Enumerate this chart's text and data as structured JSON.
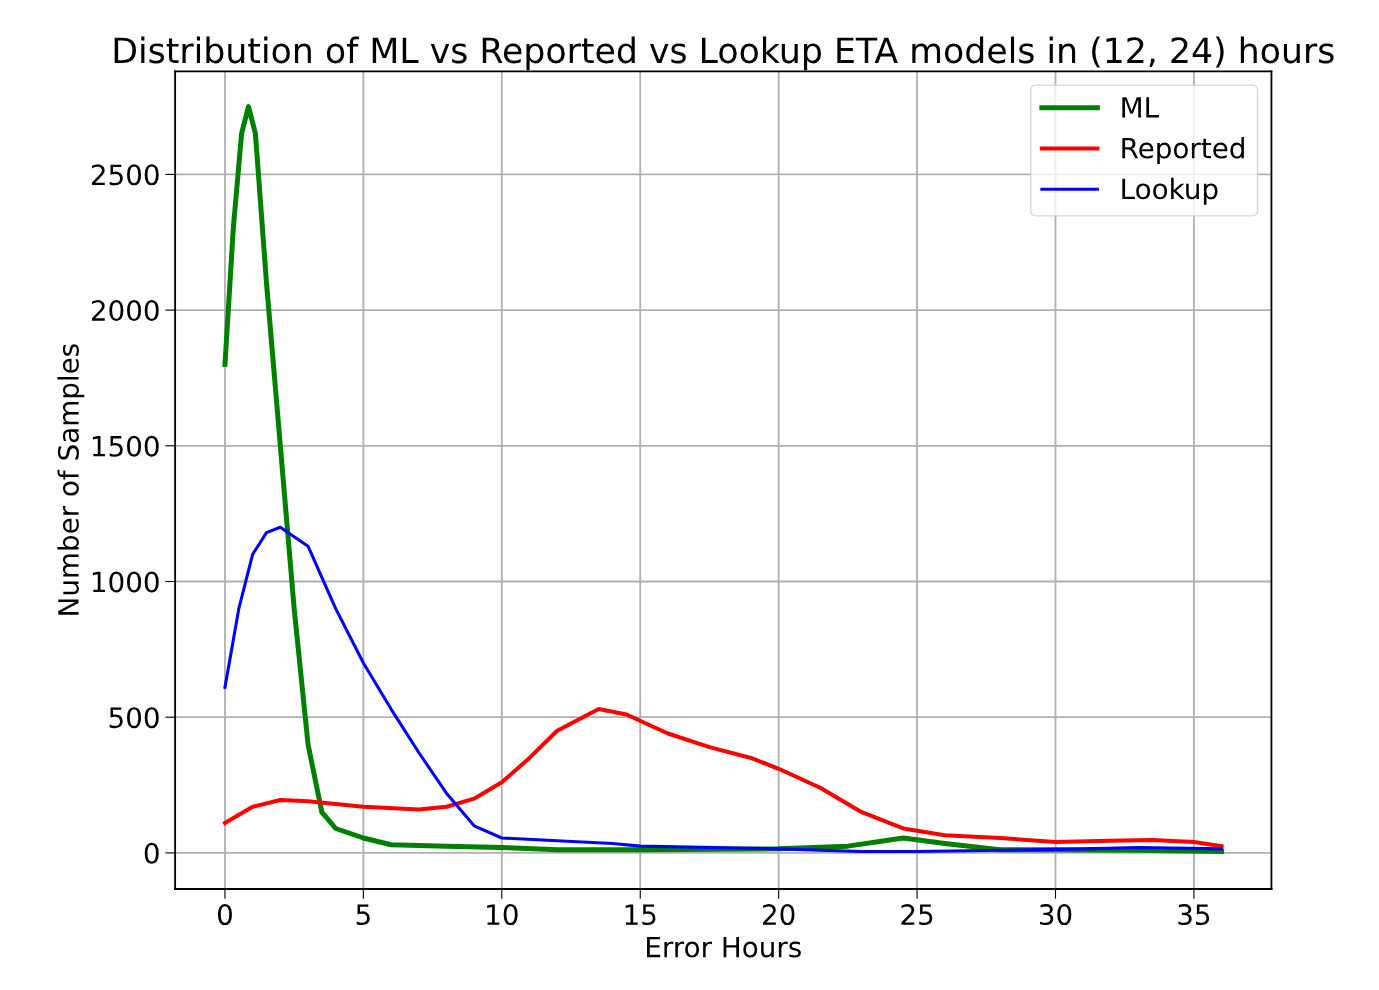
{
  "chart_data": {
    "type": "line",
    "title": "Distribution of ML vs Reported vs Lookup ETA models in (12, 24) hours",
    "xlabel": "Error Hours",
    "ylabel": "Number of Samples",
    "xlim": [
      -1.8,
      37.8
    ],
    "ylim": [
      -133,
      2880
    ],
    "xticks": [
      0,
      5,
      10,
      15,
      20,
      25,
      30,
      35
    ],
    "yticks": [
      0,
      500,
      1000,
      1500,
      2000,
      2500
    ],
    "grid": true,
    "legend": "top right",
    "series": [
      {
        "name": "ML",
        "color": "#008000",
        "x": [
          0,
          0.3,
          0.6,
          0.85,
          1.1,
          1.5,
          2,
          2.5,
          3,
          3.5,
          4,
          5,
          6,
          8,
          10,
          12,
          15,
          20,
          22.5,
          24.5,
          26,
          28,
          30,
          33,
          36
        ],
        "values": [
          1800,
          2300,
          2650,
          2750,
          2650,
          2100,
          1500,
          900,
          400,
          150,
          90,
          55,
          30,
          25,
          20,
          12,
          12,
          15,
          25,
          55,
          35,
          12,
          12,
          10,
          5
        ]
      },
      {
        "name": "Reported",
        "color": "#ff0000",
        "x": [
          0,
          1,
          2,
          3,
          4,
          5,
          7,
          8,
          9,
          10,
          11,
          12,
          13.5,
          14.5,
          16,
          17.5,
          19,
          20,
          21.5,
          23,
          24.5,
          26,
          28,
          30,
          32,
          33.5,
          35,
          36
        ],
        "values": [
          110,
          170,
          195,
          190,
          180,
          170,
          160,
          170,
          200,
          260,
          350,
          450,
          530,
          510,
          440,
          390,
          350,
          310,
          240,
          150,
          90,
          65,
          55,
          40,
          45,
          48,
          40,
          25
        ]
      },
      {
        "name": "Lookup",
        "color": "#0000ff",
        "x": [
          0,
          0.5,
          1,
          1.5,
          2,
          3,
          4,
          5,
          6,
          7,
          8,
          9,
          10,
          12,
          14,
          15,
          20,
          23,
          25,
          28,
          31,
          33,
          36
        ],
        "values": [
          610,
          900,
          1100,
          1180,
          1200,
          1130,
          900,
          700,
          530,
          370,
          220,
          100,
          55,
          45,
          35,
          25,
          15,
          5,
          5,
          10,
          15,
          20,
          15
        ]
      }
    ]
  }
}
